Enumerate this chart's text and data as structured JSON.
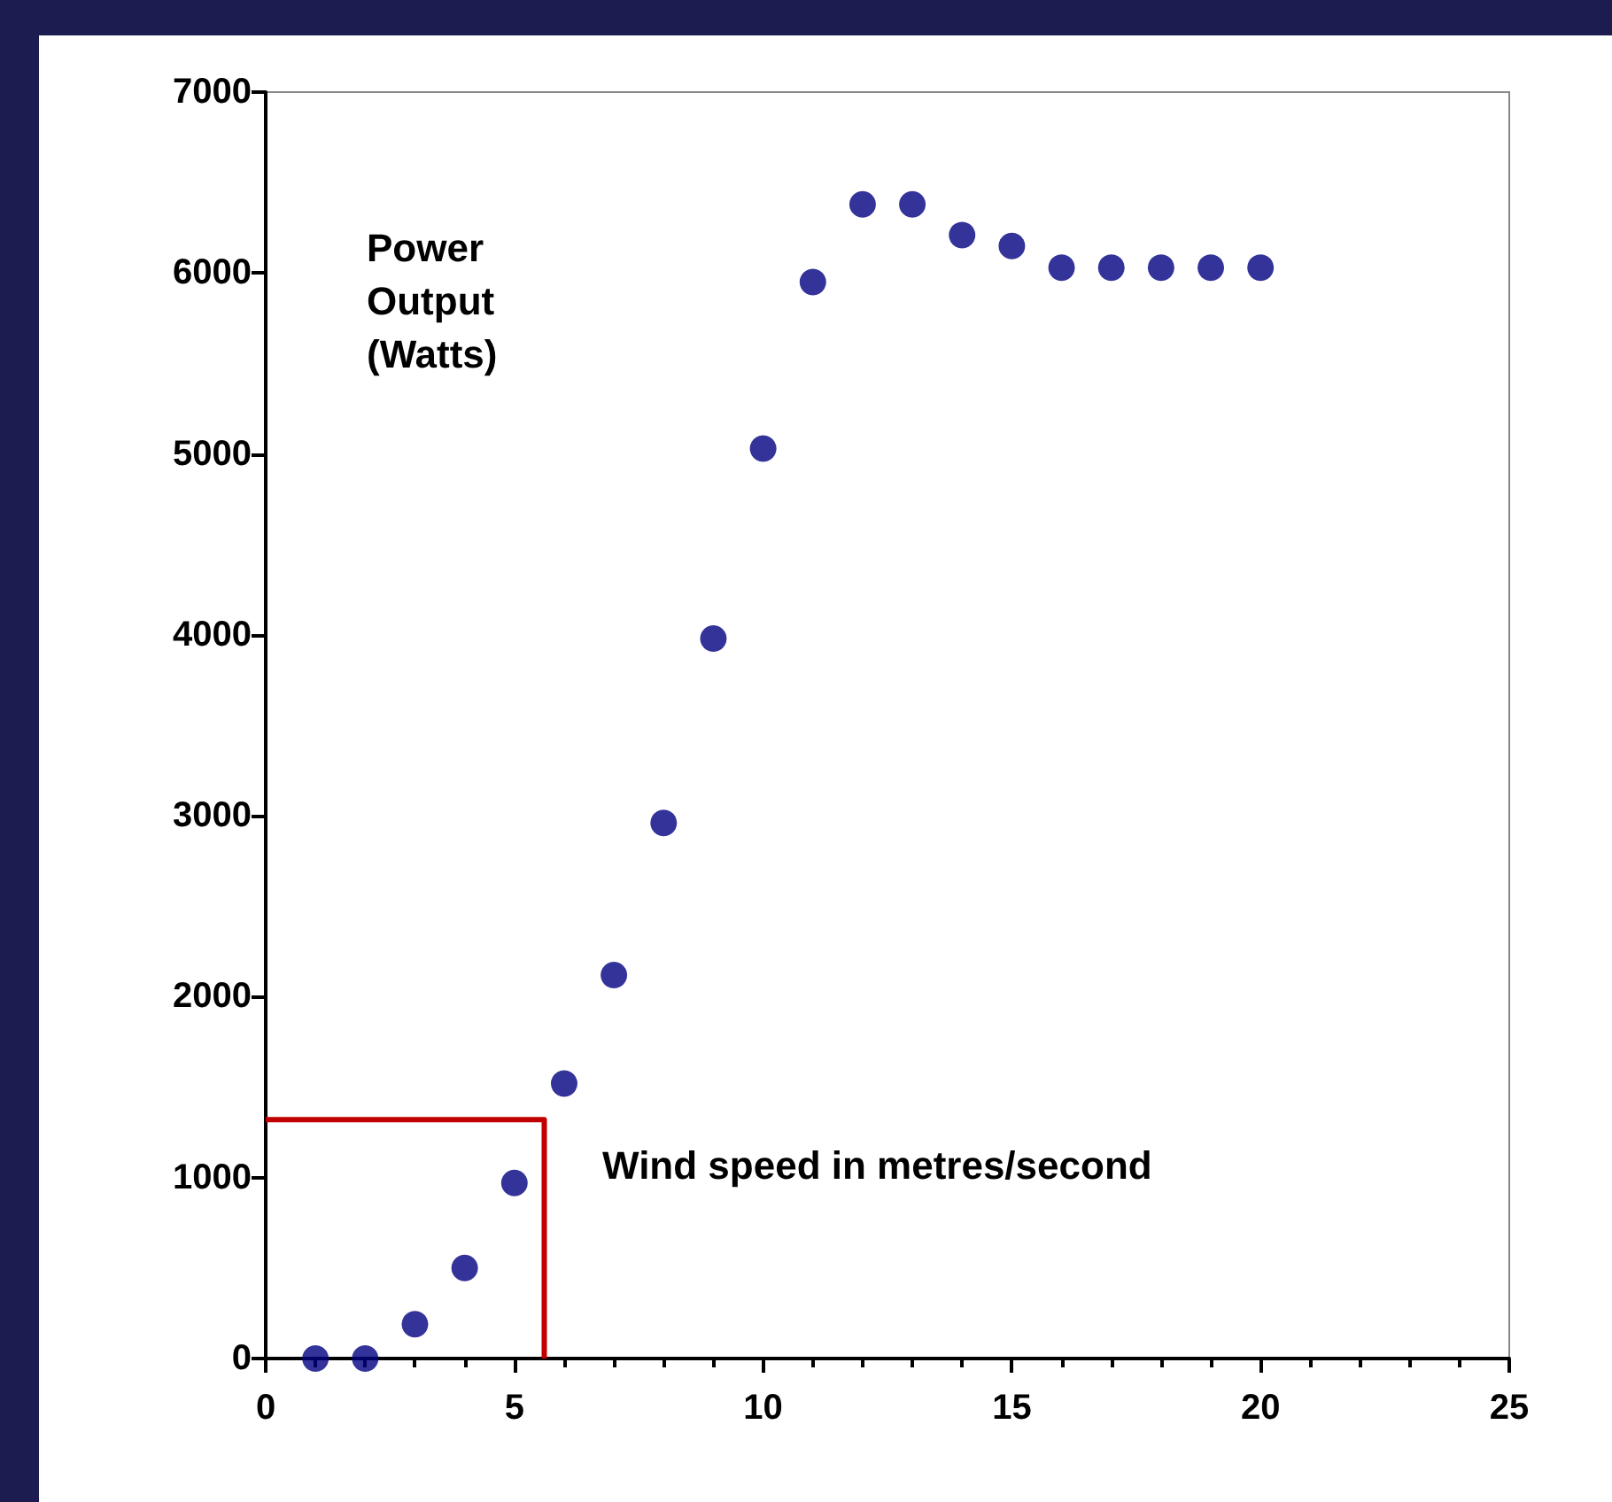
{
  "chart_data": {
    "type": "scatter",
    "xlabel": "Wind speed in metres/second",
    "ylabel": "Power Output (Watts)",
    "xlim": [
      0,
      25
    ],
    "xticks": [
      0,
      5,
      10,
      15,
      20,
      25
    ],
    "ylim": [
      0,
      7000
    ],
    "yticks": [
      0,
      1000,
      2000,
      3000,
      4000,
      5000,
      6000,
      7000
    ],
    "grid": false,
    "marker": "circle",
    "series": [
      {
        "color": "#000080",
        "x": [
          1,
          2,
          3,
          4,
          5,
          6,
          7,
          8,
          9,
          10,
          11,
          12,
          13,
          14,
          15,
          16,
          17,
          18,
          19,
          20
        ],
        "values": [
          0,
          0,
          190,
          500,
          970,
          1520,
          2120,
          2960,
          3980,
          5030,
          5950,
          6380,
          6380,
          6210,
          6150,
          6030,
          6030,
          6030,
          6030,
          6030
        ]
      },
      {
        "type": "line",
        "color": "#c00000",
        "marker": "none",
        "x": [
          0,
          5.6,
          5.6
        ],
        "values": [
          1320,
          1320,
          0
        ]
      }
    ]
  }
}
